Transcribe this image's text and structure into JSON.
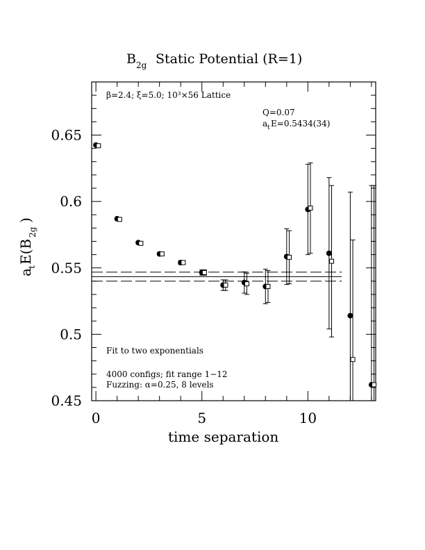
{
  "chart_data": {
    "type": "scatter",
    "title": "B",
    "title_sub": "2g",
    "title_rest": "Static Potential (R=1)",
    "xlabel": "time separation",
    "ylabel_main": "a",
    "ylabel_t": "t",
    "ylabel_mid": "E(B",
    "ylabel_sub": "2g",
    "ylabel_end": ")",
    "xlim": [
      -0.2,
      13.2
    ],
    "ylim": [
      0.45,
      0.69
    ],
    "x_ticks": [
      0,
      5,
      10
    ],
    "x_tick_labels": [
      "0",
      "5",
      "10"
    ],
    "y_ticks": [
      0.45,
      0.5,
      0.55,
      0.6,
      0.65
    ],
    "y_tick_labels": [
      "0.45",
      "0.5",
      "0.55",
      "0.6",
      "0.65"
    ],
    "annotations": {
      "lattice": "β=2.4; ξ=5.0; 10³×56 Lattice",
      "q": "Q=0.07",
      "energy_a": "a",
      "energy_t": "t",
      "energy_rest": "E=0.5434(34)",
      "fit": "Fit to two exponentials",
      "configs": "4000 configs; fit range 1−12",
      "fuzzing": "Fuzzing: α=0.25, 8 levels"
    },
    "series": [
      {
        "marker": "filled-circle",
        "x": [
          0,
          1,
          2,
          3,
          4,
          5,
          6,
          7,
          8,
          9,
          10,
          11,
          12,
          13
        ],
        "y": [
          0.6425,
          0.587,
          0.569,
          0.5605,
          0.554,
          0.5465,
          0.537,
          0.539,
          0.536,
          0.5585,
          0.594,
          0.561,
          0.514,
          0.462
        ],
        "err": [
          0.0008,
          0.0008,
          0.001,
          0.001,
          0.0015,
          0.002,
          0.004,
          0.008,
          0.013,
          0.021,
          0.034,
          0.057,
          0.093,
          0.15
        ]
      },
      {
        "marker": "open-square",
        "x": [
          0.12,
          1.12,
          2.12,
          3.12,
          4.12,
          5.12,
          6.12,
          7.12,
          8.12,
          9.12,
          10.12,
          11.12,
          12.12,
          13.12
        ],
        "y": [
          0.642,
          0.5865,
          0.5685,
          0.5605,
          0.554,
          0.5465,
          0.537,
          0.538,
          0.536,
          0.558,
          0.595,
          0.555,
          0.481,
          0.462
        ],
        "err": [
          0.0008,
          0.0008,
          0.001,
          0.001,
          0.0015,
          0.002,
          0.004,
          0.008,
          0.012,
          0.02,
          0.034,
          0.057,
          0.09,
          0.15
        ]
      }
    ],
    "fit": {
      "x_range": [
        -0.2,
        11.6
      ],
      "center": 0.5434,
      "upper": 0.5468,
      "lower": 0.54
    }
  }
}
